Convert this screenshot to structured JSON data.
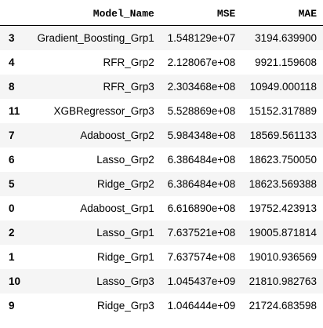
{
  "table": {
    "columns": [
      "",
      "Model_Name",
      "MSE",
      "MAE"
    ],
    "rows": [
      {
        "index": "3",
        "model_name": "Gradient_Boosting_Grp1",
        "mse": "1.548129e+07",
        "mae": "3194.639900"
      },
      {
        "index": "4",
        "model_name": "RFR_Grp2",
        "mse": "2.128067e+08",
        "mae": "9921.159608"
      },
      {
        "index": "8",
        "model_name": "RFR_Grp3",
        "mse": "2.303468e+08",
        "mae": "10949.000118"
      },
      {
        "index": "11",
        "model_name": "XGBRegressor_Grp3",
        "mse": "5.528869e+08",
        "mae": "15152.317889"
      },
      {
        "index": "7",
        "model_name": "Adaboost_Grp2",
        "mse": "5.984348e+08",
        "mae": "18569.561133"
      },
      {
        "index": "6",
        "model_name": "Lasso_Grp2",
        "mse": "6.386484e+08",
        "mae": "18623.750050"
      },
      {
        "index": "5",
        "model_name": "Ridge_Grp2",
        "mse": "6.386484e+08",
        "mae": "18623.569388"
      },
      {
        "index": "0",
        "model_name": "Adaboost_Grp1",
        "mse": "6.616890e+08",
        "mae": "19752.423913"
      },
      {
        "index": "2",
        "model_name": "Lasso_Grp1",
        "mse": "7.637521e+08",
        "mae": "19005.871814"
      },
      {
        "index": "1",
        "model_name": "Ridge_Grp1",
        "mse": "7.637574e+08",
        "mae": "19010.936569"
      },
      {
        "index": "10",
        "model_name": "Lasso_Grp3",
        "mse": "1.045437e+09",
        "mae": "21810.982763"
      },
      {
        "index": "9",
        "model_name": "Ridge_Grp3",
        "mse": "1.046444e+09",
        "mae": "21724.683598"
      }
    ]
  }
}
